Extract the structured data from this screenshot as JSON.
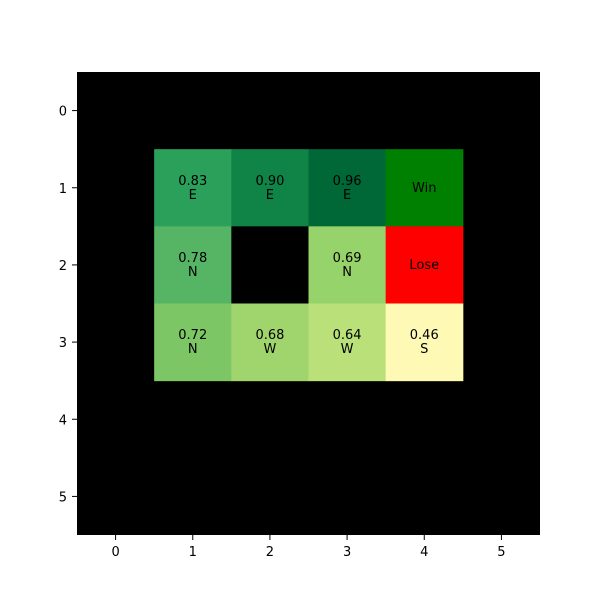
{
  "chart_data": {
    "type": "heatmap",
    "title": "",
    "xlabel": "",
    "ylabel": "",
    "x_ticks": [
      "0",
      "1",
      "2",
      "3",
      "4",
      "5"
    ],
    "y_ticks": [
      "0",
      "1",
      "2",
      "3",
      "4",
      "5"
    ],
    "xlim": [
      -0.5,
      5.5
    ],
    "ylim": [
      5.5,
      -0.5
    ],
    "background_color": "#000000",
    "cells": [
      {
        "row": 1,
        "col": 1,
        "value": "0.83",
        "action": "E",
        "color": "#2aa05a"
      },
      {
        "row": 1,
        "col": 2,
        "value": "0.90",
        "action": "E",
        "color": "#0f8446"
      },
      {
        "row": 1,
        "col": 3,
        "value": "0.96",
        "action": "E",
        "color": "#006837"
      },
      {
        "row": 1,
        "col": 4,
        "value": "",
        "action": "Win",
        "color": "#008000"
      },
      {
        "row": 2,
        "col": 1,
        "value": "0.78",
        "action": "N",
        "color": "#56b564"
      },
      {
        "row": 2,
        "col": 2,
        "value": "",
        "action": "",
        "color": "#000000"
      },
      {
        "row": 2,
        "col": 3,
        "value": "0.69",
        "action": "N",
        "color": "#96d36a"
      },
      {
        "row": 2,
        "col": 4,
        "value": "",
        "action": "Lose",
        "color": "#ff0000"
      },
      {
        "row": 3,
        "col": 1,
        "value": "0.72",
        "action": "N",
        "color": "#7cc665"
      },
      {
        "row": 3,
        "col": 2,
        "value": "0.68",
        "action": "W",
        "color": "#a0d56e"
      },
      {
        "row": 3,
        "col": 3,
        "value": "0.64",
        "action": "W",
        "color": "#b9e079"
      },
      {
        "row": 3,
        "col": 4,
        "value": "0.46",
        "action": "S",
        "color": "#fefab6"
      }
    ]
  }
}
